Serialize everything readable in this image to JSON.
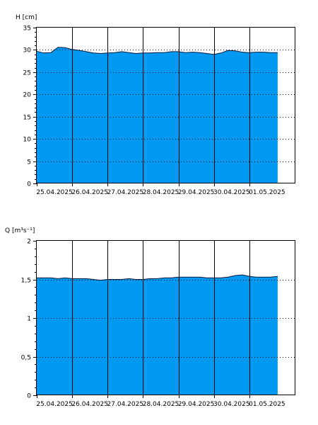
{
  "colors": {
    "fill": "#0099f2",
    "line": "#0b1a3a",
    "axis": "#000000",
    "grid": "#000000"
  },
  "chart_data": [
    {
      "type": "area",
      "ylabel": "H [cm]",
      "ylim": [
        0,
        35
      ],
      "yticks": [
        0,
        5,
        10,
        15,
        20,
        25,
        30,
        35
      ],
      "ytick_labels": [
        "0",
        "5",
        "10",
        "15",
        "20",
        "25",
        "30",
        "35"
      ],
      "xlim": [
        0,
        7.3
      ],
      "x_dates": [
        "25.04.2025",
        "26.04.2025",
        "27.04.2025",
        "28.04.2025",
        "29.04.2025",
        "30.04.2025",
        "01.05.2025"
      ],
      "grid": true,
      "series": [
        {
          "x": [
            0,
            0.2,
            0.4,
            0.6,
            0.8,
            1.0,
            1.2,
            1.4,
            1.6,
            1.8,
            2.0,
            2.2,
            2.4,
            2.6,
            2.8,
            3.0,
            3.2,
            3.4,
            3.6,
            3.8,
            4.0,
            4.2,
            4.4,
            4.6,
            4.8,
            5.0,
            5.2,
            5.4,
            5.6,
            5.8,
            6.0,
            6.2,
            6.4,
            6.6,
            6.8
          ],
          "values": [
            29.7,
            29.3,
            29.4,
            30.6,
            30.5,
            30.1,
            29.9,
            29.6,
            29.3,
            29.2,
            29.3,
            29.4,
            29.6,
            29.4,
            29.2,
            29.3,
            29.3,
            29.4,
            29.4,
            29.6,
            29.6,
            29.4,
            29.5,
            29.4,
            29.2,
            29.0,
            29.3,
            29.9,
            29.8,
            29.5,
            29.4,
            29.5,
            29.5,
            29.4,
            29.4
          ]
        }
      ]
    },
    {
      "type": "area",
      "ylabel": "Q [m³s⁻¹]",
      "ylim": [
        0,
        2
      ],
      "yticks": [
        0,
        0.5,
        1,
        1.5,
        2
      ],
      "ytick_labels": [
        "0",
        "0,5",
        "1",
        "1,5",
        "2"
      ],
      "xlim": [
        0,
        7.3
      ],
      "x_dates": [
        "25.04.2025",
        "26.04.2025",
        "27.04.2025",
        "28.04.2025",
        "29.04.2025",
        "30.04.2025",
        "01.05.2025"
      ],
      "grid": true,
      "series": [
        {
          "x": [
            0,
            0.2,
            0.4,
            0.6,
            0.8,
            1.0,
            1.2,
            1.4,
            1.6,
            1.8,
            2.0,
            2.2,
            2.4,
            2.6,
            2.8,
            3.0,
            3.2,
            3.4,
            3.6,
            3.8,
            4.0,
            4.2,
            4.4,
            4.6,
            4.8,
            5.0,
            5.2,
            5.4,
            5.6,
            5.8,
            6.0,
            6.2,
            6.4,
            6.6,
            6.8
          ],
          "values": [
            1.52,
            1.52,
            1.52,
            1.51,
            1.52,
            1.51,
            1.51,
            1.51,
            1.5,
            1.49,
            1.5,
            1.5,
            1.5,
            1.51,
            1.5,
            1.5,
            1.51,
            1.51,
            1.52,
            1.52,
            1.53,
            1.53,
            1.53,
            1.53,
            1.52,
            1.52,
            1.52,
            1.53,
            1.55,
            1.56,
            1.54,
            1.53,
            1.53,
            1.53,
            1.54
          ]
        }
      ]
    }
  ]
}
